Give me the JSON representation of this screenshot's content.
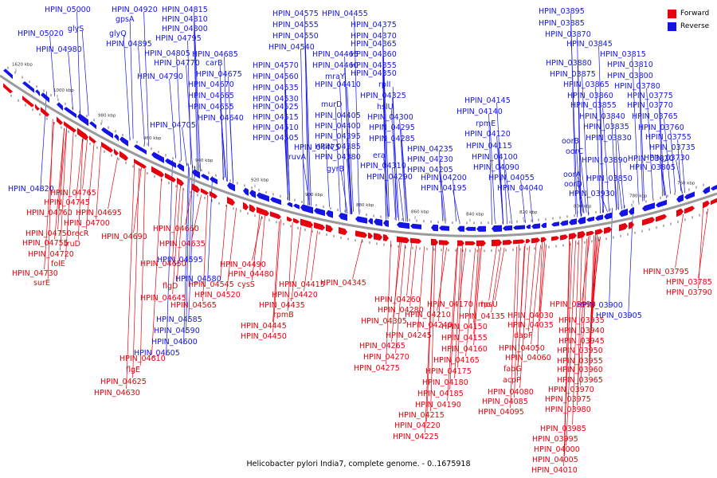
{
  "caption": "Helicobacter pylori India7, complete genome. - 0..1675918",
  "legend": {
    "forward": {
      "label": "Forward",
      "color": "#e8000d"
    },
    "reverse": {
      "label": "Reverse",
      "color": "#1414e6"
    }
  },
  "ticks": [
    "1620 kbp",
    "1000 kbp",
    "980 kbp",
    "960 kbp",
    "940 kbp",
    "920 kbp",
    "900 kbp",
    "880 kbp",
    "860 kbp",
    "840 kbp",
    "820 kbp",
    "800 kbp",
    "780 kbp",
    "760 kbp"
  ],
  "reverse_labels": [
    "HPIN_05000",
    "HPIN_04920",
    "HPIN_04815",
    "gpsA",
    "HPIN_04810",
    "glyS",
    "HPIN_04800",
    "HPIN_05020",
    "glyQ",
    "HPIN_04795",
    "HPIN_04980",
    "HPIN_04895",
    "HPIN_04685",
    "HPIN_04805",
    "HPIN_04770",
    "carB",
    "HPIN_04675",
    "HPIN_04790",
    "HPIN_04670",
    "HPIN_04665",
    "HPIN_04655",
    "HPIN_04640",
    "HPIN_04705",
    "HPIN_04820",
    "HPIN_04575",
    "HPIN_04455",
    "HPIN_04555",
    "HPIN_04375",
    "HPIN_04550",
    "HPIN_04370",
    "HPIN_04540",
    "HPIN_04365",
    "HPIN_04465",
    "HPIN_04360",
    "HPIN_04570",
    "HPIN_04460",
    "HPIN_04355",
    "HPIN_04560",
    "mraY",
    "HPIN_04350",
    "HPIN_04535",
    "HPIN_04410",
    "rplI",
    "HPIN_04530",
    "HPIN_04325",
    "HPIN_04525",
    "murD",
    "hslU",
    "HPIN_04515",
    "HPIN_04405",
    "HPIN_04300",
    "HPIN_04510",
    "HPIN_04400",
    "HPIN_04295",
    "HPIN_04505",
    "HPIN_04395",
    "HPIN_04285",
    "HPIN_04475",
    "HPIN_04385",
    "ruvA",
    "HPIN_04380",
    "era",
    "gyrB",
    "HPIN_04310",
    "HPIN_04290",
    "HPIN_04145",
    "HPIN_04140",
    "rpmE",
    "HPIN_04120",
    "HPIN_04235",
    "HPIN_04115",
    "HPIN_04230",
    "HPIN_04100",
    "HPIN_04205",
    "HPIN_04090",
    "HPIN_04200",
    "HPIN_04055",
    "HPIN_04195",
    "HPIN_04040",
    "HPIN_03895",
    "HPIN_03885",
    "HPIN_03870",
    "HPIN_03845",
    "HPIN_03815",
    "HPIN_03880",
    "HPIN_03810",
    "HPIN_03875",
    "HPIN_03800",
    "HPIN_03865",
    "HPIN_03780",
    "HPIN_03860",
    "HPIN_03775",
    "HPIN_03855",
    "HPIN_03770",
    "HPIN_03840",
    "HPIN_03765",
    "HPIN_03835",
    "HPIN_03760",
    "HPIN_03830",
    "HPIN_03755",
    "oorB",
    "oorC",
    "HPIN_03735",
    "HPIN_03820",
    "HPIN_03730",
    "HPIN_03890",
    "HPIN_03805",
    "oorA",
    "HPIN_03850",
    "oorD",
    "HPIN_03930",
    "HPIN_04595",
    "HPIN_04580",
    "HPIN_04585",
    "HPIN_04590",
    "HPIN_04600",
    "HPIN_04605",
    "HPIN_03900",
    "HPIN_03905"
  ],
  "forward_labels": [
    "HPIN_04765",
    "HPIN_04745",
    "HPIN_04760",
    "HPIN_04695",
    "HPIN_04700",
    "HPIN_04750",
    "recR",
    "HPIN_04755",
    "truD",
    "HPIN_04720",
    "folE",
    "HPIN_04730",
    "surE",
    "HPIN_04660",
    "HPIN_04690",
    "HPIN_04635",
    "HPIN_04650",
    "flgD",
    "HPIN_04645",
    "HPIN_04610",
    "flgE",
    "HPIN_04625",
    "HPIN_04630",
    "HPIN_04490",
    "HPIN_04480",
    "HPIN_04545",
    "cysS",
    "HPIN_04520",
    "HPIN_04565",
    "HPIN_04415",
    "HPIN_04420",
    "HPIN_04435",
    "rpmB",
    "HPIN_04445",
    "HPIN_04450",
    "HPIN_04345",
    "HPIN_04260",
    "HPIN_04280",
    "HPIN_04305",
    "HPIN_04210",
    "HPIN_04240",
    "HPIN_04245",
    "HPIN_04265",
    "HPIN_04270",
    "HPIN_04275",
    "HPIN_04170",
    "rho",
    "HPIN_04135",
    "HPIN_04150",
    "HPIN_04155",
    "HPIN_04160",
    "HPIN_04165",
    "HPIN_04175",
    "HPIN_04180",
    "HPIN_04185",
    "HPIN_04190",
    "HPIN_04215",
    "HPIN_04220",
    "HPIN_04225",
    "rpsU",
    "HPIN_04030",
    "HPIN_04035",
    "dapF",
    "HPIN_04050",
    "HPIN_04060",
    "fabG",
    "acpP",
    "HPIN_04080",
    "HPIN_04085",
    "HPIN_04095",
    "HPIN_03990",
    "HPIN_03935",
    "HPIN_03940",
    "HPIN_03945",
    "HPIN_03950",
    "HPIN_03955",
    "HPIN_03960",
    "HPIN_03965",
    "HPIN_03970",
    "HPIN_03975",
    "HPIN_03980",
    "HPIN_03985",
    "HPIN_03995",
    "HPIN_04000",
    "HPIN_04005",
    "HPIN_04010",
    "HPIN_03795",
    "HPIN_03785",
    "HPIN_03790"
  ]
}
